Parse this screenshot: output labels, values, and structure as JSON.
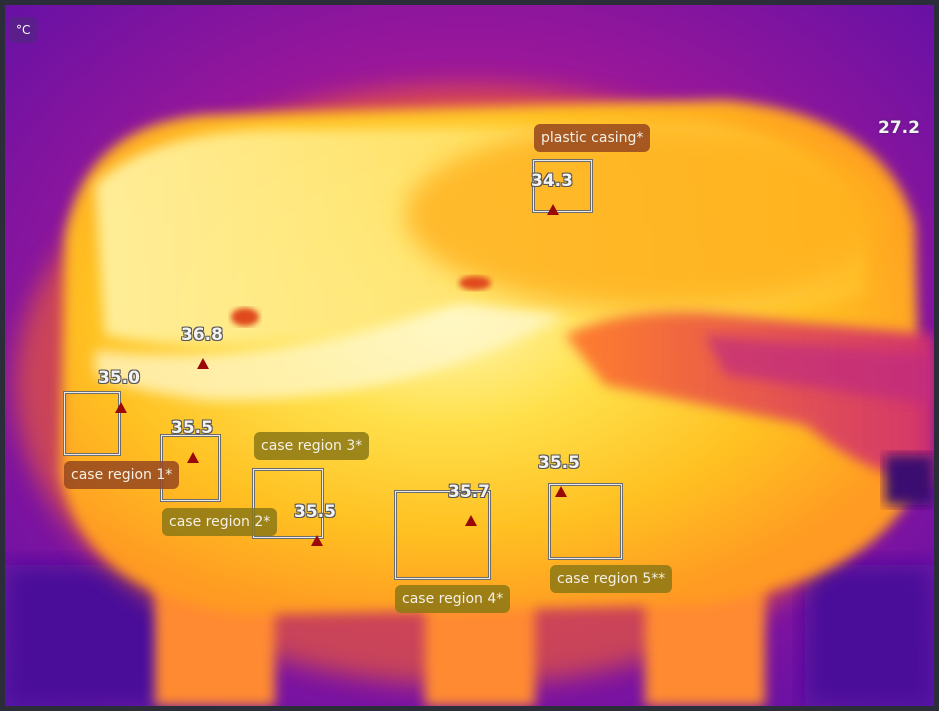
{
  "unit": "°C",
  "scale_max": "27.2",
  "spots": [
    {
      "id": "s1",
      "value": "36.8"
    },
    {
      "id": "s2",
      "value": "35.0"
    },
    {
      "id": "s3",
      "value": "35.5"
    },
    {
      "id": "s4",
      "value": "35.5"
    },
    {
      "id": "s5",
      "value": "35.7"
    },
    {
      "id": "s6",
      "value": "35.5"
    },
    {
      "id": "s7",
      "value": "34.3"
    }
  ],
  "regions": [
    {
      "label": "case region 1*"
    },
    {
      "label": "case region 2*"
    },
    {
      "label": "case region 3*"
    },
    {
      "label": "case region 4*"
    },
    {
      "label": "case region 5**"
    },
    {
      "label": "plastic casing*"
    }
  ],
  "colors": {
    "hot": "#fff4a0",
    "warm": "#ffc21a",
    "mid": "#ff8c1a",
    "cool": "#c01880",
    "cold": "#5a10b0",
    "marker": "#9b0808"
  }
}
